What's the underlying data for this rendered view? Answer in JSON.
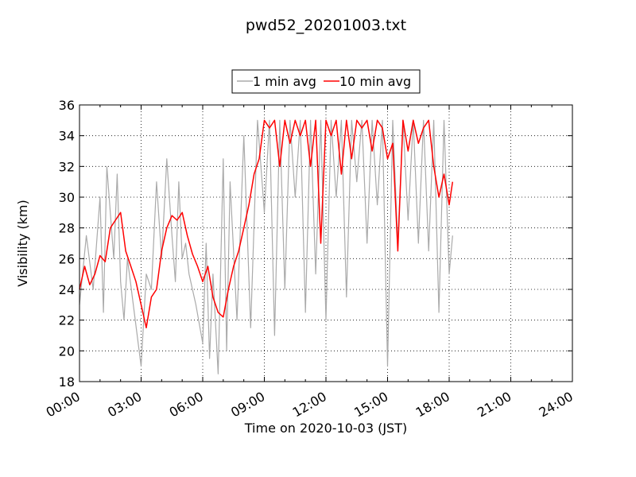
{
  "chart_data": {
    "type": "line",
    "title": "pwd52_20201003.txt",
    "xlabel": "Time on 2020-10-03 (JST)",
    "ylabel": "Visibility (km)",
    "xlim": [
      "00:00",
      "24:00"
    ],
    "ylim": [
      18,
      36
    ],
    "x_ticks": [
      "00:00",
      "03:00",
      "06:00",
      "09:00",
      "12:00",
      "15:00",
      "18:00",
      "21:00",
      "24:00"
    ],
    "y_ticks": [
      18,
      20,
      22,
      24,
      26,
      28,
      30,
      32,
      34,
      36
    ],
    "grid": true,
    "legend_position": "top-center, above plot",
    "series": [
      {
        "name": "1 min avg",
        "color": "#aaaaaa",
        "x": [
          "00:00",
          "00:20",
          "00:40",
          "01:00",
          "01:10",
          "01:20",
          "01:40",
          "01:50",
          "02:00",
          "02:10",
          "02:20",
          "02:40",
          "03:00",
          "03:15",
          "03:30",
          "03:45",
          "04:00",
          "04:15",
          "04:30",
          "04:40",
          "04:50",
          "05:00",
          "05:10",
          "05:20",
          "05:40",
          "06:00",
          "06:10",
          "06:20",
          "06:30",
          "06:45",
          "07:00",
          "07:10",
          "07:20",
          "07:40",
          "08:00",
          "08:20",
          "08:40",
          "09:00",
          "09:15",
          "09:30",
          "09:45",
          "10:00",
          "10:15",
          "10:30",
          "10:45",
          "11:00",
          "11:15",
          "11:30",
          "11:45",
          "12:00",
          "12:15",
          "12:30",
          "12:45",
          "13:00",
          "13:15",
          "13:30",
          "13:45",
          "14:00",
          "14:15",
          "14:30",
          "14:45",
          "15:00",
          "15:15",
          "15:30",
          "15:45",
          "16:00",
          "16:15",
          "16:30",
          "16:45",
          "17:00",
          "17:15",
          "17:30",
          "17:45",
          "18:00",
          "18:10"
        ],
        "values": [
          23.0,
          27.5,
          24.0,
          30.0,
          22.5,
          32.0,
          26.0,
          31.5,
          24.5,
          22.0,
          26.0,
          22.5,
          19.0,
          25.0,
          24.0,
          31.0,
          26.0,
          32.5,
          27.5,
          24.5,
          31.0,
          26.0,
          27.0,
          25.0,
          23.0,
          20.5,
          27.0,
          19.5,
          25.0,
          18.5,
          32.5,
          20.0,
          31.0,
          22.0,
          34.0,
          21.5,
          35.0,
          29.0,
          35.0,
          21.0,
          35.0,
          24.0,
          35.0,
          30.0,
          35.0,
          22.5,
          35.0,
          25.0,
          35.0,
          22.0,
          35.0,
          30.0,
          35.0,
          23.5,
          35.0,
          31.0,
          35.0,
          27.0,
          35.0,
          29.5,
          35.0,
          19.0,
          35.0,
          27.0,
          35.0,
          28.5,
          35.0,
          27.0,
          35.0,
          26.5,
          35.0,
          22.5,
          35.0,
          25.0,
          27.5
        ]
      },
      {
        "name": "10 min avg",
        "color": "#ff0000",
        "x": [
          "00:00",
          "00:15",
          "00:30",
          "00:45",
          "01:00",
          "01:15",
          "01:30",
          "01:45",
          "02:00",
          "02:15",
          "02:30",
          "02:45",
          "03:00",
          "03:15",
          "03:30",
          "03:45",
          "04:00",
          "04:15",
          "04:30",
          "04:45",
          "05:00",
          "05:15",
          "05:30",
          "05:45",
          "06:00",
          "06:15",
          "06:30",
          "06:45",
          "07:00",
          "07:15",
          "07:30",
          "07:45",
          "08:00",
          "08:15",
          "08:30",
          "08:45",
          "09:00",
          "09:15",
          "09:30",
          "09:45",
          "10:00",
          "10:15",
          "10:30",
          "10:45",
          "11:00",
          "11:15",
          "11:30",
          "11:45",
          "12:00",
          "12:15",
          "12:30",
          "12:45",
          "13:00",
          "13:15",
          "13:30",
          "13:45",
          "14:00",
          "14:15",
          "14:30",
          "14:45",
          "15:00",
          "15:15",
          "15:30",
          "15:45",
          "16:00",
          "16:15",
          "16:30",
          "16:45",
          "17:00",
          "17:15",
          "17:30",
          "17:45",
          "18:00",
          "18:10"
        ],
        "values": [
          24.0,
          25.5,
          24.3,
          25.0,
          26.2,
          25.8,
          28.0,
          28.5,
          29.0,
          26.5,
          25.5,
          24.5,
          23.0,
          21.5,
          23.5,
          24.0,
          26.5,
          28.0,
          28.8,
          28.5,
          29.0,
          27.5,
          26.3,
          25.5,
          24.5,
          25.5,
          23.5,
          22.5,
          22.2,
          24.0,
          25.5,
          26.5,
          28.0,
          29.5,
          31.5,
          32.5,
          35.0,
          34.5,
          35.0,
          32.0,
          35.0,
          33.5,
          35.0,
          34.0,
          35.0,
          32.0,
          35.0,
          27.0,
          35.0,
          34.0,
          35.0,
          31.5,
          35.0,
          32.5,
          35.0,
          34.5,
          35.0,
          33.0,
          35.0,
          34.5,
          32.5,
          33.5,
          26.5,
          35.0,
          33.0,
          35.0,
          33.5,
          34.5,
          35.0,
          32.0,
          30.0,
          31.5,
          29.5,
          31.0
        ]
      }
    ]
  }
}
